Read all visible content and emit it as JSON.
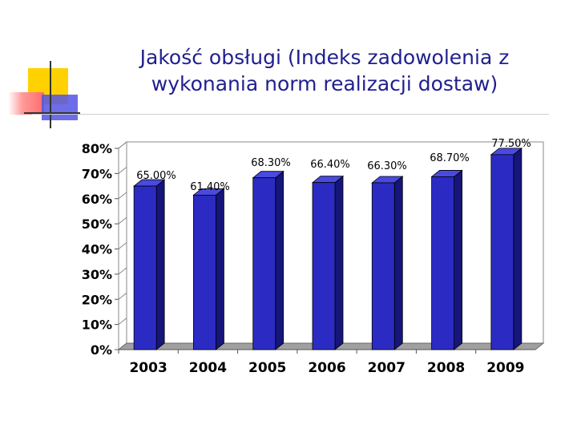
{
  "slide": {
    "title_line1": "Jakość obsługi (Indeks zadowolenia z",
    "title_line2": "wykonania norm realizacji dostaw)"
  },
  "colors": {
    "title": "#1f1f8f",
    "bar_front": "#2b2bc4",
    "bar_side": "#15157a",
    "bar_top": "#4a4ae0",
    "deco_yellow": "#ffd100",
    "deco_red": "#ff7b7b",
    "deco_blue": "#4f4fe0"
  },
  "chart_data": {
    "type": "bar",
    "categories": [
      "2003",
      "2004",
      "2005",
      "2006",
      "2007",
      "2008",
      "2009"
    ],
    "values": [
      65.0,
      61.4,
      68.3,
      66.4,
      66.3,
      68.7,
      77.5
    ],
    "data_labels": [
      "65.00%",
      "61.40%",
      "68.30%",
      "66.40%",
      "66.30%",
      "68.70%",
      "77.50%"
    ],
    "y_ticks": [
      "0%",
      "10%",
      "20%",
      "30%",
      "40%",
      "50%",
      "60%",
      "70%",
      "80%"
    ],
    "ylim": [
      0,
      80
    ],
    "grid": false,
    "legend": "none",
    "style": "3d-column"
  }
}
